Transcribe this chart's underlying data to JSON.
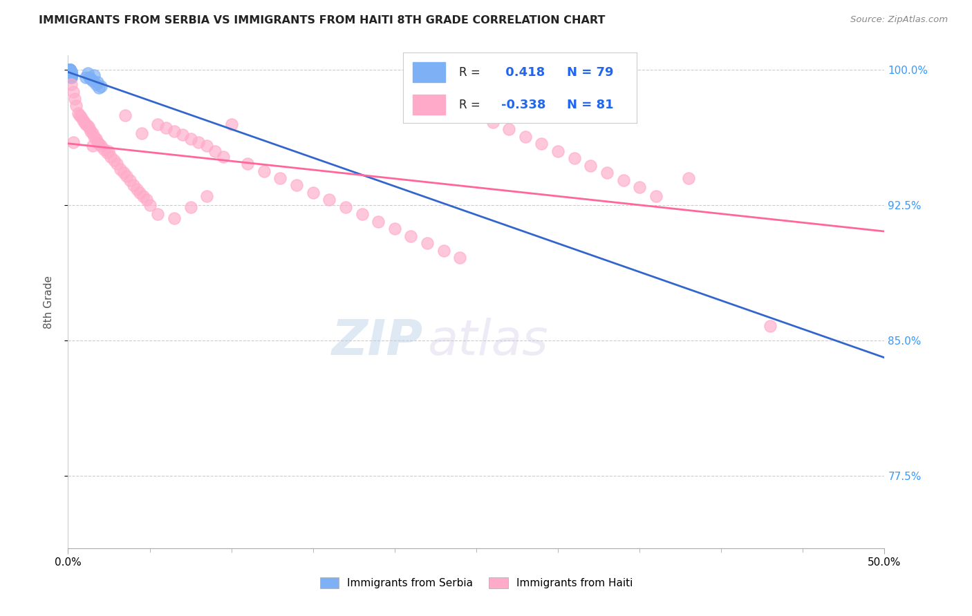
{
  "title": "IMMIGRANTS FROM SERBIA VS IMMIGRANTS FROM HAITI 8TH GRADE CORRELATION CHART",
  "source": "Source: ZipAtlas.com",
  "ylabel_label": "8th Grade",
  "legend_serbia": "Immigrants from Serbia",
  "legend_haiti": "Immigrants from Haiti",
  "R_serbia": 0.418,
  "N_serbia": 79,
  "R_haiti": -0.338,
  "N_haiti": 81,
  "serbia_color": "#7db0f5",
  "haiti_color": "#ffaac8",
  "trendline_serbia_color": "#3366cc",
  "trendline_haiti_color": "#ff6699",
  "background_color": "#ffffff",
  "xmin": 0.0,
  "xmax": 0.5,
  "ymin": 0.735,
  "ymax": 1.008,
  "y_tick_vals": [
    0.775,
    0.85,
    0.925,
    1.0
  ],
  "watermark_zip": "ZIP",
  "watermark_atlas": "atlas",
  "serbia_scatter_x": [
    0.001,
    0.001,
    0.001,
    0.001,
    0.002,
    0.002,
    0.002,
    0.002,
    0.001,
    0.001,
    0.001,
    0.002,
    0.001,
    0.001,
    0.001,
    0.001,
    0.002,
    0.001,
    0.002,
    0.001,
    0.001,
    0.001,
    0.001,
    0.001,
    0.001,
    0.002,
    0.001,
    0.001,
    0.001,
    0.001,
    0.001,
    0.001,
    0.002,
    0.001,
    0.001,
    0.001,
    0.001,
    0.001,
    0.001,
    0.001,
    0.001,
    0.001,
    0.001,
    0.001,
    0.001,
    0.001,
    0.001,
    0.002,
    0.001,
    0.001,
    0.001,
    0.001,
    0.001,
    0.001,
    0.001,
    0.001,
    0.001,
    0.001,
    0.001,
    0.001,
    0.001,
    0.001,
    0.001,
    0.001,
    0.001,
    0.001,
    0.001,
    0.001,
    0.001,
    0.014,
    0.016,
    0.018,
    0.013,
    0.012,
    0.015,
    0.017,
    0.011,
    0.02,
    0.019
  ],
  "serbia_scatter_y": [
    0.998,
    0.999,
    0.997,
    1.0,
    0.998,
    0.996,
    0.999,
    0.997,
    1.0,
    0.999,
    0.998,
    0.997,
    0.999,
    0.998,
    1.0,
    0.999,
    0.997,
    0.998,
    0.996,
    1.0,
    0.999,
    0.998,
    0.997,
    0.999,
    1.0,
    0.998,
    0.997,
    0.999,
    0.998,
    1.0,
    0.999,
    0.998,
    0.997,
    1.0,
    0.999,
    0.998,
    0.997,
    0.999,
    0.998,
    1.0,
    0.999,
    0.997,
    0.998,
    0.999,
    1.0,
    0.998,
    0.997,
    0.999,
    0.998,
    1.0,
    0.999,
    0.997,
    0.998,
    0.999,
    1.0,
    0.998,
    0.997,
    0.999,
    0.998,
    1.0,
    0.999,
    0.997,
    0.998,
    0.999,
    1.0,
    0.998,
    0.997,
    0.999,
    0.998,
    0.995,
    0.997,
    0.993,
    0.996,
    0.998,
    0.994,
    0.992,
    0.996,
    0.991,
    0.99
  ],
  "haiti_scatter_x": [
    0.002,
    0.003,
    0.004,
    0.005,
    0.006,
    0.007,
    0.008,
    0.009,
    0.01,
    0.011,
    0.012,
    0.013,
    0.014,
    0.015,
    0.016,
    0.017,
    0.018,
    0.019,
    0.02,
    0.022,
    0.024,
    0.026,
    0.028,
    0.03,
    0.032,
    0.034,
    0.036,
    0.038,
    0.04,
    0.042,
    0.044,
    0.046,
    0.048,
    0.05,
    0.055,
    0.06,
    0.065,
    0.07,
    0.075,
    0.08,
    0.085,
    0.09,
    0.095,
    0.1,
    0.11,
    0.12,
    0.13,
    0.14,
    0.15,
    0.16,
    0.17,
    0.18,
    0.19,
    0.2,
    0.21,
    0.22,
    0.23,
    0.24,
    0.25,
    0.26,
    0.27,
    0.28,
    0.29,
    0.3,
    0.31,
    0.32,
    0.33,
    0.34,
    0.35,
    0.003,
    0.015,
    0.025,
    0.035,
    0.045,
    0.055,
    0.065,
    0.075,
    0.085,
    0.36,
    0.38,
    0.43
  ],
  "haiti_scatter_y": [
    0.992,
    0.988,
    0.984,
    0.98,
    0.976,
    0.975,
    0.974,
    0.972,
    0.971,
    0.97,
    0.969,
    0.968,
    0.966,
    0.965,
    0.963,
    0.962,
    0.96,
    0.959,
    0.958,
    0.956,
    0.954,
    0.952,
    0.95,
    0.948,
    0.945,
    0.943,
    0.941,
    0.939,
    0.936,
    0.934,
    0.932,
    0.93,
    0.928,
    0.925,
    0.97,
    0.968,
    0.966,
    0.964,
    0.962,
    0.96,
    0.958,
    0.955,
    0.952,
    0.97,
    0.948,
    0.944,
    0.94,
    0.936,
    0.932,
    0.928,
    0.924,
    0.92,
    0.916,
    0.912,
    0.908,
    0.904,
    0.9,
    0.896,
    0.975,
    0.971,
    0.967,
    0.963,
    0.959,
    0.955,
    0.951,
    0.947,
    0.943,
    0.939,
    0.935,
    0.96,
    0.958,
    0.955,
    0.975,
    0.965,
    0.92,
    0.918,
    0.924,
    0.93,
    0.93,
    0.94,
    0.858
  ]
}
